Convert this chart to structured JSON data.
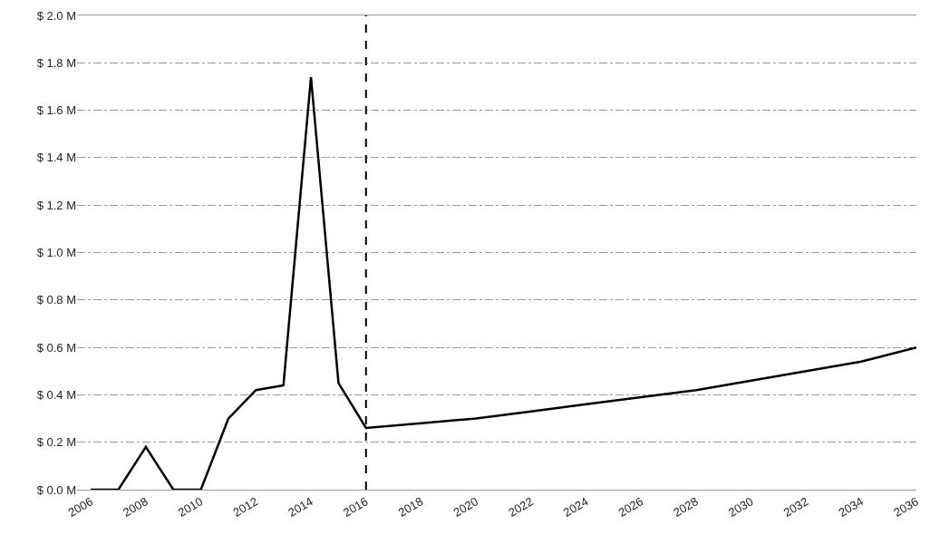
{
  "chart_data": {
    "type": "line",
    "x": [
      2006,
      2007,
      2008,
      2009,
      2010,
      2011,
      2012,
      2013,
      2014,
      2015,
      2016,
      2018,
      2020,
      2022,
      2024,
      2026,
      2028,
      2030,
      2032,
      2034,
      2036
    ],
    "series": [
      {
        "color": "#000000",
        "values": [
          0,
          0,
          0.18,
          0,
          0,
          0.3,
          0.42,
          0.44,
          1.74,
          0.45,
          0.26,
          0.28,
          0.3,
          0.33,
          0.36,
          0.39,
          0.42,
          0.46,
          0.5,
          0.54,
          0.6
        ]
      }
    ],
    "xlim": [
      2005.5,
      2036
    ],
    "xticks": [
      2006,
      2008,
      2010,
      2012,
      2014,
      2016,
      2018,
      2020,
      2022,
      2024,
      2026,
      2028,
      2030,
      2032,
      2034,
      2036
    ],
    "ylim": [
      0,
      2.0
    ],
    "yticks": [
      {
        "value": 0,
        "label": "$ 0.0 M"
      },
      {
        "value": 0.2,
        "label": "$ 0.2 M"
      },
      {
        "value": 0.4,
        "label": "$ 0.4 M"
      },
      {
        "value": 0.6,
        "label": "$ 0.6 M"
      },
      {
        "value": 0.8,
        "label": "$ 0.8 M"
      },
      {
        "value": 1.0,
        "label": "$ 1.0 M"
      },
      {
        "value": 1.2,
        "label": "$ 1.2 M"
      },
      {
        "value": 1.4,
        "label": "$ 1.4 M"
      },
      {
        "value": 1.6,
        "label": "$ 1.6 M"
      },
      {
        "value": 1.8,
        "label": "$ 1.8 M"
      },
      {
        "value": 2.0,
        "label": "$ 2.0 M"
      }
    ],
    "grid": "y",
    "marker": "none",
    "line_style": "solid",
    "ref_lines": [
      {
        "axis": "x",
        "value": 2016,
        "color": "#000000",
        "line_style": "dashed"
      }
    ]
  }
}
